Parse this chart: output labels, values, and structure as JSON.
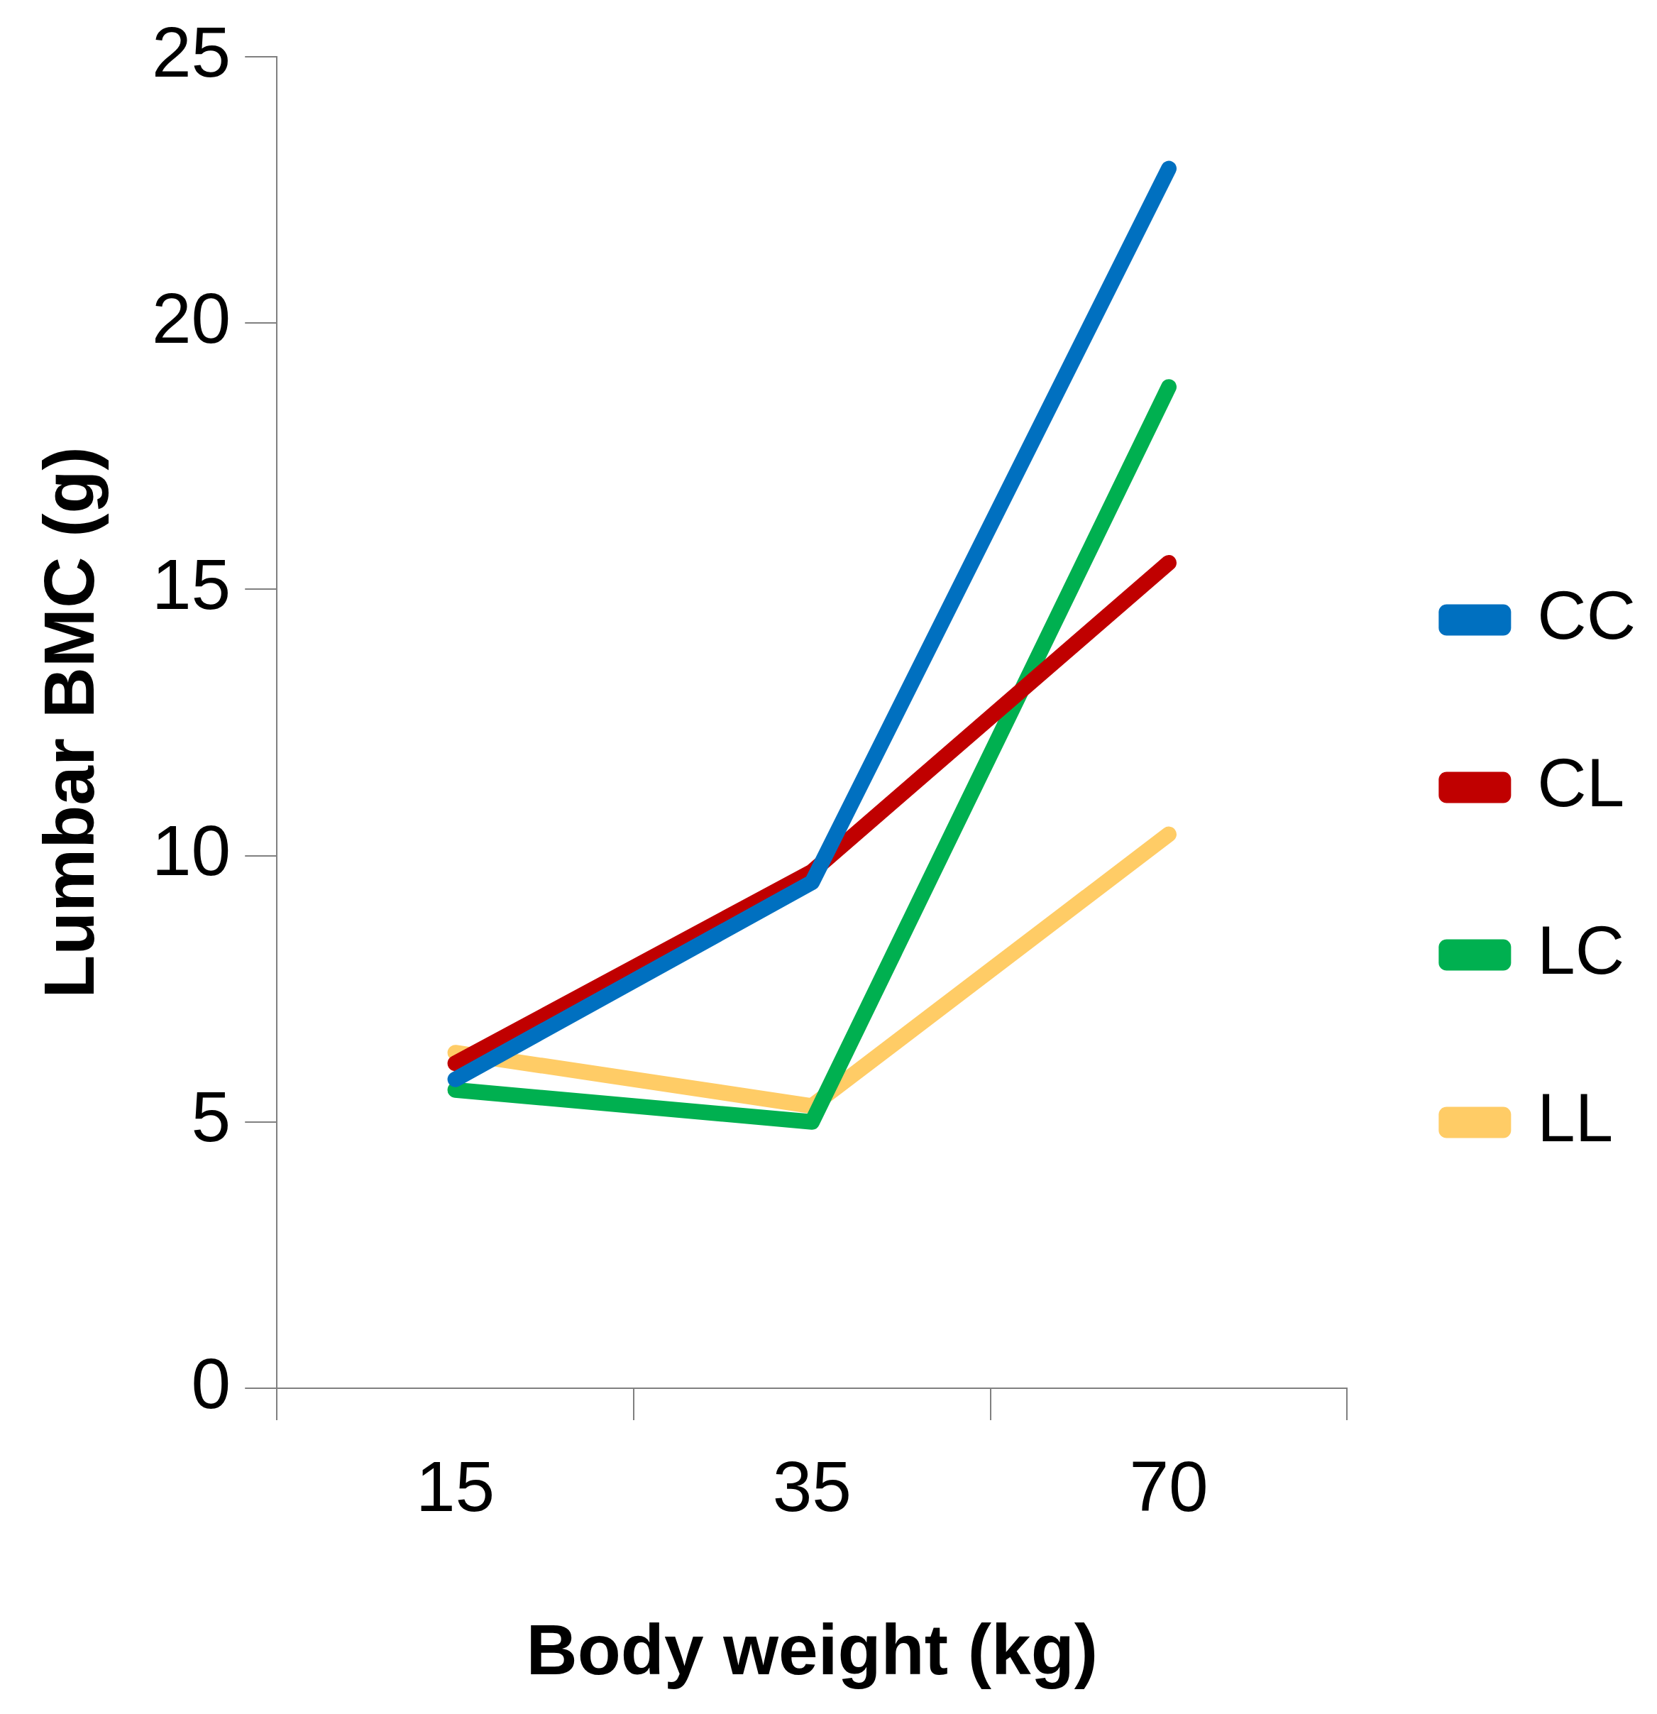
{
  "chart_data": {
    "type": "line",
    "xlabel": "Body weight (kg)",
    "ylabel": "Lumbar BMC (g)",
    "categories": [
      "15",
      "35",
      "70"
    ],
    "series": [
      {
        "name": "CC",
        "color": "#0070c0",
        "values": [
          5.8,
          9.5,
          22.9
        ]
      },
      {
        "name": "CL",
        "color": "#c00000",
        "values": [
          6.1,
          9.7,
          15.5
        ]
      },
      {
        "name": "LC",
        "color": "#00b050",
        "values": [
          5.6,
          5.0,
          18.8
        ]
      },
      {
        "name": "LL",
        "color": "#ffcc66",
        "values": [
          6.3,
          5.3,
          10.4
        ]
      }
    ],
    "ylim": [
      0,
      25
    ],
    "yticks": [
      0,
      5,
      10,
      15,
      20,
      25
    ],
    "grid": false,
    "legend": "right",
    "marker": "none",
    "line_style": "solid"
  }
}
